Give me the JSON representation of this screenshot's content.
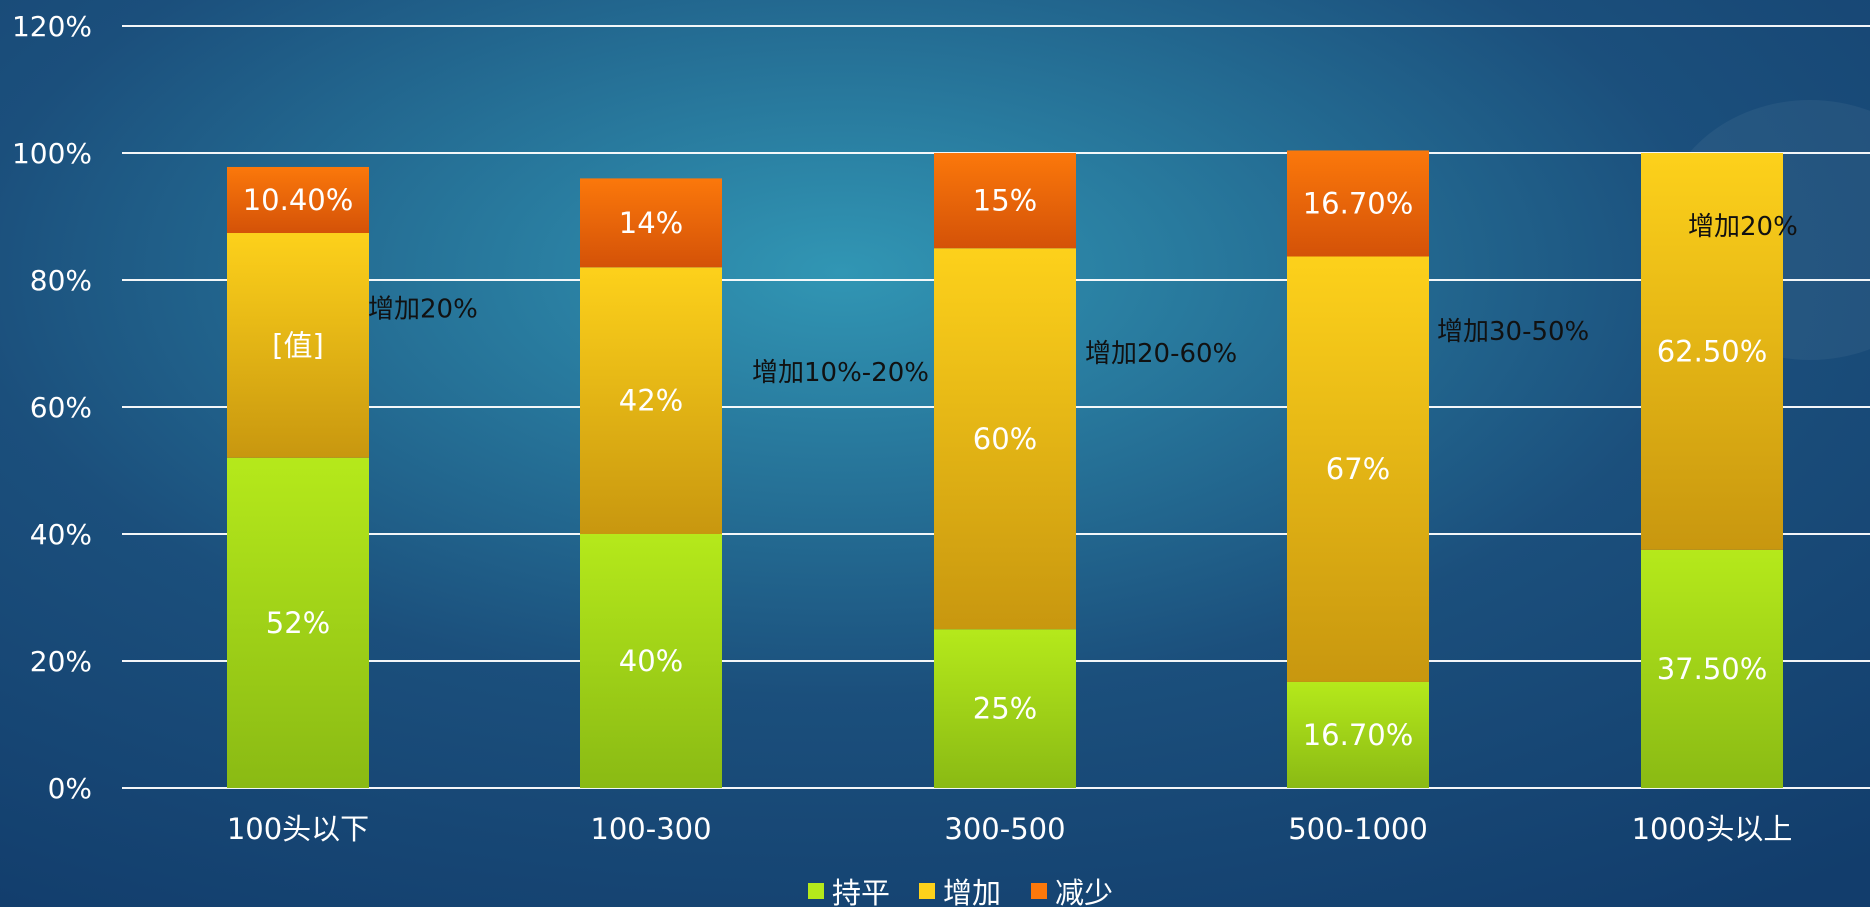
{
  "colors": {
    "background_start": "#1b4f7c",
    "background_mid": "#3196b4",
    "background_end": "#123d6c",
    "grid": "#ffffff",
    "text": "#ffffff",
    "annotation": "#111111"
  },
  "chart_data": {
    "type": "bar",
    "stacked": true,
    "title": "",
    "xlabel": "",
    "ylabel": "",
    "ylim": [
      0,
      1.2
    ],
    "yticks": [
      0,
      0.2,
      0.4,
      0.6,
      0.8,
      1.0,
      1.2
    ],
    "ytick_labels": [
      "0%",
      "20%",
      "40%",
      "60%",
      "80%",
      "100%",
      "120%"
    ],
    "grid": true,
    "legend_position": "bottom",
    "categories": [
      "100头以下",
      "100-300",
      "300-500",
      "500-1000",
      "1000头以上"
    ],
    "series": [
      {
        "name": "持平",
        "color_top": "#b5e91b",
        "color_bottom": "#8aba14",
        "values": [
          0.52,
          0.4,
          0.25,
          0.167,
          0.375
        ],
        "labels": [
          "52%",
          "40%",
          "25%",
          "16.70%",
          "37.50%"
        ]
      },
      {
        "name": "增加",
        "color_top": "#fdd11b",
        "color_bottom": "#c8970f",
        "values": [
          0.354,
          0.42,
          0.6,
          0.67,
          0.625
        ],
        "labels": [
          "[值]",
          "42%",
          "60%",
          "67%",
          "62.50%"
        ]
      },
      {
        "name": "减少",
        "color_top": "#fb780b",
        "color_bottom": "#d45208",
        "values": [
          0.104,
          0.14,
          0.15,
          0.167,
          0
        ],
        "labels": [
          "10.40%",
          "14%",
          "15%",
          "16.70%",
          ""
        ]
      }
    ],
    "annotations": [
      {
        "text": "增加20%",
        "category_index": 0,
        "y": 0.755
      },
      {
        "text": "增加10%-20%",
        "category_index": 1,
        "y": 0.655
      },
      {
        "text": "增加20-60%",
        "category_index": 2,
        "y": 0.685
      },
      {
        "text": "增加30-50%",
        "category_index": 3,
        "y": 0.72
      },
      {
        "text": "增加20%",
        "category_index": 4,
        "y": 0.885
      }
    ]
  }
}
